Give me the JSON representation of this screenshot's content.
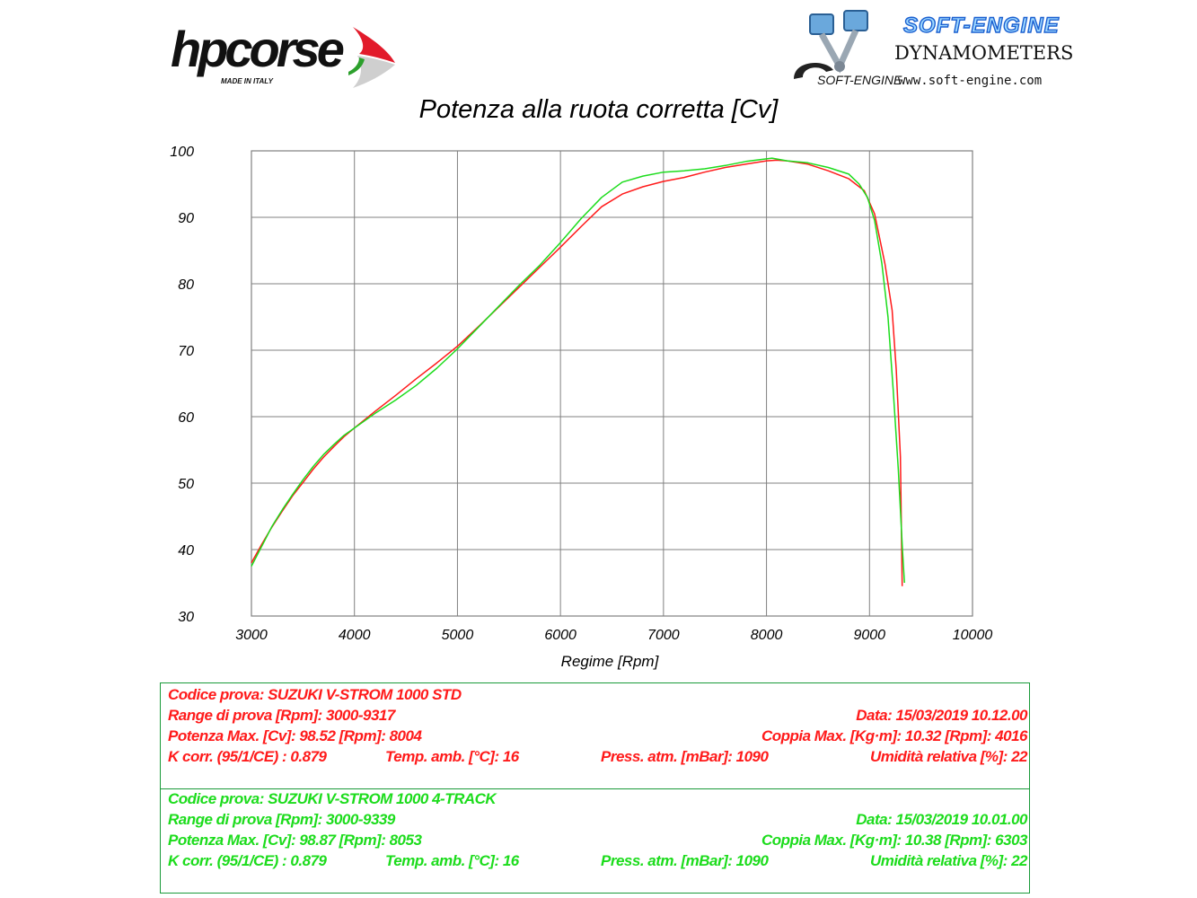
{
  "logos": {
    "hpcorse_text": "hpcorse",
    "hpcorse_sub": "MADE IN ITALY",
    "softengine_title": "SOFT-ENGINE",
    "softengine_sub": "DYNAMOMETERS",
    "softengine_small": "SOFT-ENGINE",
    "softengine_url": "www.soft-engine.com"
  },
  "colors": {
    "std": "#ff1a1a",
    "fourtrack": "#1cdc1c",
    "grid": "#808080"
  },
  "chart_data": {
    "type": "line",
    "title": "Potenza alla ruota corretta [Cv]",
    "xlabel": "Regime [Rpm]",
    "ylabel": "",
    "xlim": [
      3000,
      10000
    ],
    "ylim": [
      30,
      100
    ],
    "xticks": [
      3000,
      4000,
      5000,
      6000,
      7000,
      8000,
      9000,
      10000
    ],
    "yticks": [
      30,
      40,
      50,
      60,
      70,
      80,
      90,
      100
    ],
    "grid": true,
    "series": [
      {
        "color": "#ff1a1a",
        "points": [
          [
            3000,
            38
          ],
          [
            3100,
            40.8
          ],
          [
            3200,
            43.4
          ],
          [
            3300,
            45.8
          ],
          [
            3400,
            48.1
          ],
          [
            3500,
            50.1
          ],
          [
            3600,
            52.1
          ],
          [
            3700,
            53.9
          ],
          [
            3800,
            55.5
          ],
          [
            3900,
            57
          ],
          [
            4000,
            58.3
          ],
          [
            4200,
            60.8
          ],
          [
            4400,
            63.2
          ],
          [
            4600,
            65.7
          ],
          [
            4800,
            68.1
          ],
          [
            5000,
            70.6
          ],
          [
            5200,
            73.5
          ],
          [
            5400,
            76.5
          ],
          [
            5600,
            79.5
          ],
          [
            5800,
            82.5
          ],
          [
            6000,
            85.5
          ],
          [
            6200,
            88.6
          ],
          [
            6400,
            91.6
          ],
          [
            6600,
            93.5
          ],
          [
            6800,
            94.6
          ],
          [
            7000,
            95.4
          ],
          [
            7200,
            96
          ],
          [
            7400,
            96.8
          ],
          [
            7600,
            97.5
          ],
          [
            7800,
            98
          ],
          [
            8000,
            98.5
          ],
          [
            8100,
            98.6
          ],
          [
            8200,
            98.5
          ],
          [
            8400,
            98
          ],
          [
            8600,
            97
          ],
          [
            8800,
            95.8
          ],
          [
            8950,
            94
          ],
          [
            9050,
            90.5
          ],
          [
            9150,
            83
          ],
          [
            9220,
            76
          ],
          [
            9260,
            67
          ],
          [
            9300,
            54
          ],
          [
            9317,
            34.5
          ]
        ]
      },
      {
        "color": "#1cdc1c",
        "points": [
          [
            3000,
            37.5
          ],
          [
            3100,
            40.5
          ],
          [
            3200,
            43.5
          ],
          [
            3300,
            46
          ],
          [
            3400,
            48.3
          ],
          [
            3500,
            50.5
          ],
          [
            3600,
            52.5
          ],
          [
            3700,
            54.3
          ],
          [
            3800,
            55.8
          ],
          [
            3900,
            57.2
          ],
          [
            4000,
            58.3
          ],
          [
            4200,
            60.5
          ],
          [
            4400,
            62.5
          ],
          [
            4600,
            64.7
          ],
          [
            4800,
            67.3
          ],
          [
            5000,
            70.2
          ],
          [
            5200,
            73.4
          ],
          [
            5400,
            76.6
          ],
          [
            5600,
            79.8
          ],
          [
            5800,
            82.8
          ],
          [
            6000,
            86.2
          ],
          [
            6200,
            89.8
          ],
          [
            6400,
            93
          ],
          [
            6600,
            95.3
          ],
          [
            6800,
            96.2
          ],
          [
            7000,
            96.8
          ],
          [
            7200,
            97
          ],
          [
            7400,
            97.3
          ],
          [
            7600,
            97.8
          ],
          [
            7800,
            98.4
          ],
          [
            8000,
            98.8
          ],
          [
            8053,
            98.9
          ],
          [
            8200,
            98.5
          ],
          [
            8400,
            98.2
          ],
          [
            8600,
            97.5
          ],
          [
            8800,
            96.5
          ],
          [
            8900,
            95
          ],
          [
            8980,
            93
          ],
          [
            9050,
            89.5
          ],
          [
            9120,
            83
          ],
          [
            9180,
            75
          ],
          [
            9230,
            64
          ],
          [
            9280,
            52
          ],
          [
            9320,
            40
          ],
          [
            9339,
            35
          ]
        ]
      }
    ]
  },
  "box_std": {
    "line1_left": "Codice prova: SUZUKI V-STROM 1000 STD",
    "line2_left": "Range di prova [Rpm]: 3000-9317",
    "line2_right": "Data: 15/03/2019   10.12.00",
    "line3_left": "Potenza Max. [Cv]: 98.52   [Rpm]: 8004",
    "line3_right": "Coppia Max. [Kg·m]: 10.32   [Rpm]: 4016",
    "line4_a": "K corr. (95/1/CE) : 0.879",
    "line4_b": "Temp. amb. [°C]: 16",
    "line4_c": "Press. atm. [mBar]: 1090",
    "line4_d": "Umidità relativa [%]: 22"
  },
  "box_4track": {
    "line1_left": "Codice prova: SUZUKI V-STROM 1000  4-TRACK",
    "line2_left": "Range di prova [Rpm]: 3000-9339",
    "line2_right": "Data: 15/03/2019   10.01.00",
    "line3_left": "Potenza Max. [Cv]: 98.87   [Rpm]: 8053",
    "line3_right": "Coppia Max. [Kg·m]: 10.38   [Rpm]: 6303",
    "line4_a": "K corr. (95/1/CE) : 0.879",
    "line4_b": "Temp. amb. [°C]: 16",
    "line4_c": "Press. atm. [mBar]: 1090",
    "line4_d": "Umidità relativa [%]: 22"
  }
}
